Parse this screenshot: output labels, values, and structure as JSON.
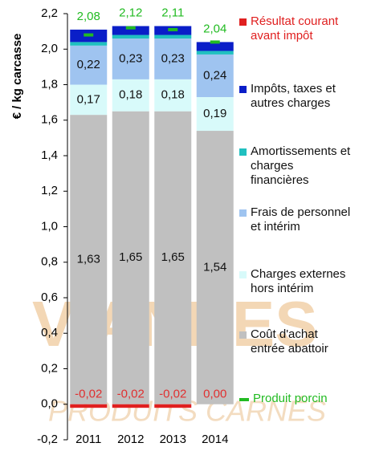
{
  "chart_data": {
    "type": "bar",
    "stacked": true,
    "y_label": "€ / kg carcasse",
    "categories": [
      "2011",
      "2012",
      "2013",
      "2014"
    ],
    "ylim": [
      -0.2,
      2.2
    ],
    "yticks": [
      {
        "value": -0.2,
        "label": "-0,2"
      },
      {
        "value": 0,
        "label": "0,0"
      },
      {
        "value": 0.2,
        "label": "0,2"
      },
      {
        "value": 0.4,
        "label": "0,4"
      },
      {
        "value": 0.6,
        "label": "0,6"
      },
      {
        "value": 0.8,
        "label": "0,8"
      },
      {
        "value": 1,
        "label": "1,0"
      },
      {
        "value": 1.2,
        "label": "1,2"
      },
      {
        "value": 1.4,
        "label": "1,4"
      },
      {
        "value": 1.6,
        "label": "1,6"
      },
      {
        "value": 1.8,
        "label": "1,8"
      },
      {
        "value": 2,
        "label": "2,0"
      },
      {
        "value": 2.2,
        "label": "2,2"
      }
    ],
    "series": [
      {
        "name": "Résultat courant avant impôt",
        "color": "#e02020",
        "label_color": "#e03030",
        "values": [
          -0.02,
          -0.02,
          -0.02,
          0
        ],
        "value_labels": [
          "-0,02",
          "-0,02",
          "-0,02",
          "0,00"
        ]
      },
      {
        "name": "Impôts, taxes et autres charges",
        "color": "#0a1ec8",
        "values": [
          0.07,
          0.05,
          0.05,
          0.05
        ]
      },
      {
        "name": "Amortissements et charges financières",
        "color": "#20c0c0",
        "values": [
          0.02,
          0.02,
          0.02,
          0.02
        ]
      },
      {
        "name": "Frais de personnel et intérim",
        "color": "#9fc4f0",
        "label_color": "#111",
        "values": [
          0.22,
          0.23,
          0.23,
          0.24
        ],
        "value_labels": [
          "0,22",
          "0,23",
          "0,23",
          "0,24"
        ]
      },
      {
        "name": "Charges externes hors intérim",
        "color": "#d8fafa",
        "label_color": "#111",
        "values": [
          0.17,
          0.18,
          0.18,
          0.19
        ],
        "value_labels": [
          "0,17",
          "0,18",
          "0,18",
          "0,19"
        ]
      },
      {
        "name": "Coût d'achat entrée abattoir",
        "color": "#c0c0c0",
        "label_color": "#111",
        "values": [
          1.63,
          1.65,
          1.65,
          1.54
        ],
        "value_labels": [
          "1,63",
          "1,65",
          "1,65",
          "1,54"
        ]
      },
      {
        "name": "Produit porcin",
        "type": "marker",
        "color": "#22bb22",
        "label_color": "#22bb22",
        "values": [
          2.08,
          2.12,
          2.11,
          2.04
        ],
        "value_labels": [
          "2,08",
          "2,12",
          "2,11",
          "2,04"
        ]
      }
    ]
  },
  "watermark": [
    "VIANDES",
    "PRODUITS CARNÉS"
  ]
}
